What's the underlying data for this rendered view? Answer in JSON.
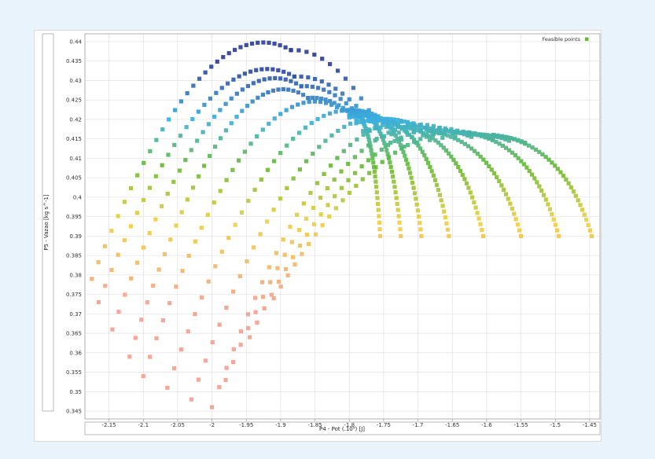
{
  "chart_data": {
    "type": "scatter",
    "xlabel": "P4 - Pot (.10⁵) [J]",
    "ylabel": "P5 - Vazao  [kg s^-1]",
    "xlim": [
      -2.185,
      -1.435
    ],
    "ylim": [
      0.343,
      0.442
    ],
    "xticks": [
      "-2.15",
      "-2.1",
      "-2.05",
      "-2",
      "-1.95",
      "-1.9",
      "-1.85",
      "-1.8",
      "-1.75",
      "-1.7",
      "-1.65",
      "-1.6",
      "-1.55",
      "-1.5",
      "-1.45"
    ],
    "xtick_values": [
      -2.15,
      -2.1,
      -2.05,
      -2,
      -1.95,
      -1.9,
      -1.85,
      -1.8,
      -1.75,
      -1.7,
      -1.65,
      -1.6,
      -1.55,
      -1.5,
      -1.45
    ],
    "yticks": [
      "0.345",
      "0.35",
      "0.355",
      "0.36",
      "0.365",
      "0.37",
      "0.375",
      "0.38",
      "0.385",
      "0.39",
      "0.395",
      "0.4",
      "0.405",
      "0.41",
      "0.415",
      "0.42",
      "0.425",
      "0.43",
      "0.435",
      "0.44"
    ],
    "ytick_values": [
      0.345,
      0.35,
      0.355,
      0.36,
      0.365,
      0.37,
      0.375,
      0.38,
      0.385,
      0.39,
      0.395,
      0.4,
      0.405,
      0.41,
      0.415,
      0.42,
      0.425,
      0.43,
      0.435,
      0.44
    ],
    "grid": true,
    "legend": {
      "position": "top-right",
      "entries": [
        "Feasible points"
      ]
    },
    "legend_color": "#66bb33",
    "color_scale": [
      "#f6a08f",
      "#f0d040",
      "#66bb33",
      "#3ab0e0",
      "#2e3f9c"
    ],
    "marker": "square",
    "series": [
      {
        "start": [
          -2.175,
          0.379
        ],
        "peak": [
          -1.885,
          0.4378
        ],
        "end": [
          -1.76,
          0.419
        ]
      },
      {
        "start": [
          -2.165,
          0.373
        ],
        "peak": [
          -1.88,
          0.431
        ],
        "end": [
          -1.77,
          0.4195
        ]
      },
      {
        "start": [
          -2.145,
          0.366
        ],
        "peak": [
          -1.87,
          0.4285
        ],
        "end": [
          -1.78,
          0.4198
        ]
      },
      {
        "start": [
          -2.12,
          0.359
        ],
        "peak": [
          -1.86,
          0.4255
        ],
        "end": [
          -1.79,
          0.4202
        ]
      },
      {
        "start": [
          -2.1,
          0.354
        ],
        "peak": [
          -1.81,
          0.4223
        ]
      },
      {
        "start": [
          -2.065,
          0.351
        ],
        "peak": [
          -1.76,
          0.42
        ]
      },
      {
        "start": [
          -2.03,
          0.348
        ],
        "peak": [
          -1.72,
          0.418
        ]
      },
      {
        "start": [
          -2.0,
          0.346
        ],
        "peak": [
          -1.68,
          0.417
        ]
      },
      {
        "start": [
          -1.98,
          0.353
        ],
        "peak": [
          -1.65,
          0.4165
        ]
      },
      {
        "start": [
          -1.945,
          0.364
        ],
        "peak": [
          -1.625,
          0.416
        ]
      },
      {
        "start": [
          -1.91,
          0.374
        ],
        "peak": [
          -1.6,
          0.4155
        ]
      }
    ],
    "branches": [
      {
        "from": [
          -1.8,
          0.421
        ],
        "peak": [
          -1.79,
          0.4214
        ],
        "end": [
          -1.755,
          0.39
        ]
      },
      {
        "from": [
          -1.8,
          0.421
        ],
        "peak": [
          -1.78,
          0.4214
        ],
        "end": [
          -1.725,
          0.39
        ]
      },
      {
        "from": [
          -1.8,
          0.4205
        ],
        "peak": [
          -1.765,
          0.4208
        ],
        "end": [
          -1.695,
          0.39
        ]
      },
      {
        "from": [
          -1.79,
          0.419
        ],
        "peak": [
          -1.75,
          0.4196
        ],
        "end": [
          -1.655,
          0.39
        ]
      },
      {
        "from": [
          -1.78,
          0.417
        ],
        "peak": [
          -1.72,
          0.418
        ],
        "end": [
          -1.605,
          0.39
        ]
      },
      {
        "from": [
          -1.76,
          0.415
        ],
        "peak": [
          -1.685,
          0.417
        ],
        "end": [
          -1.55,
          0.39
        ]
      },
      {
        "from": [
          -1.74,
          0.414
        ],
        "peak": [
          -1.63,
          0.4165
        ],
        "end": [
          -1.495,
          0.39
        ]
      },
      {
        "from": [
          -1.72,
          0.413
        ],
        "peak": [
          -1.59,
          0.416
        ],
        "end": [
          -1.447,
          0.39
        ]
      }
    ]
  }
}
